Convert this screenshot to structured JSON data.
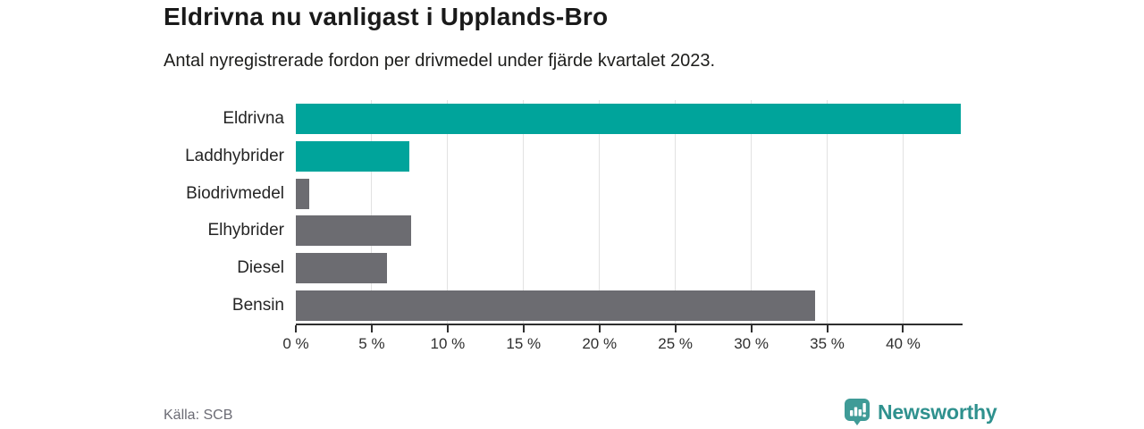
{
  "header": {
    "title": "Eldrivna nu vanligast i Upplands-Bro",
    "subtitle": "Antal nyregistrerade fordon per drivmedel under fjärde kvartalet 2023."
  },
  "chart_data": {
    "type": "bar",
    "orientation": "horizontal",
    "title": "Eldrivna nu vanligast i Upplands-Bro",
    "subtitle": "Antal nyregistrerade fordon per drivmedel under fjärde kvartalet 2023.",
    "categories": [
      "Eldrivna",
      "Laddhybrider",
      "Biodrivmedel",
      "Elhybrider",
      "Diesel",
      "Bensin"
    ],
    "values": [
      43.8,
      7.5,
      0.9,
      7.6,
      6.0,
      34.2
    ],
    "unit": "%",
    "bar_colors": [
      "#00a49b",
      "#00a49b",
      "#6c6c71",
      "#6c6c71",
      "#6c6c71",
      "#6c6c71"
    ],
    "xlim": [
      0,
      43.8
    ],
    "x_ticks": [
      0,
      5,
      10,
      15,
      20,
      25,
      30,
      35,
      40
    ],
    "x_tick_labels": [
      "0 %",
      "5 %",
      "10 %",
      "15 %",
      "20 %",
      "25 %",
      "30 %",
      "35 %",
      "40 %"
    ],
    "xlabel": "",
    "ylabel": "",
    "grid": "vertical-only",
    "legend": "none"
  },
  "footer": {
    "source": "Källa: SCB",
    "logo_text": "Newsworthy"
  },
  "colors": {
    "accent_teal": "#00a49b",
    "neutral_bar": "#6c6c71",
    "gridline": "#e2e2e2",
    "axis": "#2f2f2f",
    "logo_teal": "#2f918e",
    "title_text": "#1a1a1a",
    "source_text": "#6b6b74"
  }
}
